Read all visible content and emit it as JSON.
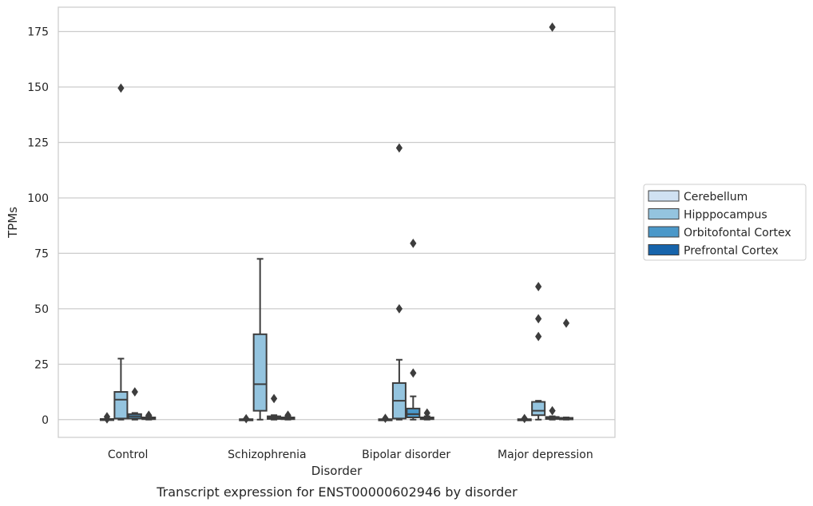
{
  "caption": "Transcript expression for ENST00000602946 by disorder",
  "chart_data": {
    "type": "box",
    "xlabel": "Disorder",
    "ylabel": "TPMs",
    "categories": [
      "Control",
      "Schizophrenia",
      "Bipolar disorder",
      "Major depression"
    ],
    "ylim": [
      -8,
      186
    ],
    "yticks": [
      0,
      25,
      50,
      75,
      100,
      125,
      150,
      175
    ],
    "grid": "horizontal",
    "legend_position": "right",
    "series": [
      {
        "name": "Cerebellum",
        "color": "#d0e1f2",
        "boxes": [
          {
            "q1": 0,
            "median": 0,
            "q3": 0.3,
            "whisker_low": 0,
            "whisker_high": 0.3,
            "outliers": [
              0.3,
              1.3
            ]
          },
          {
            "q1": 0,
            "median": 0,
            "q3": 0.2,
            "whisker_low": 0,
            "whisker_high": 0.2,
            "outliers": [
              0.4
            ]
          },
          {
            "q1": 0,
            "median": 0,
            "q3": 0.2,
            "whisker_low": 0,
            "whisker_high": 0.2,
            "outliers": [
              0.6
            ]
          },
          {
            "q1": 0,
            "median": 0,
            "q3": 0.2,
            "whisker_low": 0,
            "whisker_high": 0.2,
            "outliers": [
              0.5
            ]
          }
        ]
      },
      {
        "name": "Hipppocampus",
        "color": "#94c4df",
        "boxes": [
          {
            "q1": 0.5,
            "median": 9,
            "q3": 12.5,
            "whisker_low": 0,
            "whisker_high": 27.5,
            "outliers": [
              149.5
            ]
          },
          {
            "q1": 4,
            "median": 16,
            "q3": 38.5,
            "whisker_low": 0,
            "whisker_high": 72.5,
            "outliers": []
          },
          {
            "q1": 0.5,
            "median": 8.5,
            "q3": 16.5,
            "whisker_low": 0,
            "whisker_high": 27,
            "outliers": [
              122.5,
              50
            ]
          },
          {
            "q1": 2,
            "median": 4,
            "q3": 8,
            "whisker_low": 0,
            "whisker_high": 8.5,
            "outliers": [
              60,
              45.5,
              37.5
            ]
          }
        ]
      },
      {
        "name": "Orbitofontal Cortex",
        "color": "#4b98c9",
        "boxes": [
          {
            "q1": 0.5,
            "median": 1.5,
            "q3": 2.5,
            "whisker_low": 0,
            "whisker_high": 3,
            "outliers": [
              12.5
            ]
          },
          {
            "q1": 0.3,
            "median": 1,
            "q3": 1.5,
            "whisker_low": 0,
            "whisker_high": 2,
            "outliers": [
              9.5
            ]
          },
          {
            "q1": 1,
            "median": 2.5,
            "q3": 5,
            "whisker_low": 0,
            "whisker_high": 10.5,
            "outliers": [
              79.5,
              21
            ]
          },
          {
            "q1": 0.3,
            "median": 0.8,
            "q3": 1.2,
            "whisker_low": 0,
            "whisker_high": 1.5,
            "outliers": [
              177,
              4
            ]
          }
        ]
      },
      {
        "name": "Prefrontal Cortex",
        "color": "#1764ab",
        "boxes": [
          {
            "q1": 0.2,
            "median": 0.6,
            "q3": 1,
            "whisker_low": 0,
            "whisker_high": 1.5,
            "outliers": [
              2
            ]
          },
          {
            "q1": 0.2,
            "median": 0.6,
            "q3": 1,
            "whisker_low": 0,
            "whisker_high": 1.5,
            "outliers": [
              2
            ]
          },
          {
            "q1": 0.2,
            "median": 0.6,
            "q3": 1,
            "whisker_low": 0,
            "whisker_high": 1.5,
            "outliers": [
              3
            ]
          },
          {
            "q1": 0.1,
            "median": 0.4,
            "q3": 0.8,
            "whisker_low": 0,
            "whisker_high": 1,
            "outliers": [
              43.5
            ]
          }
        ]
      }
    ]
  }
}
